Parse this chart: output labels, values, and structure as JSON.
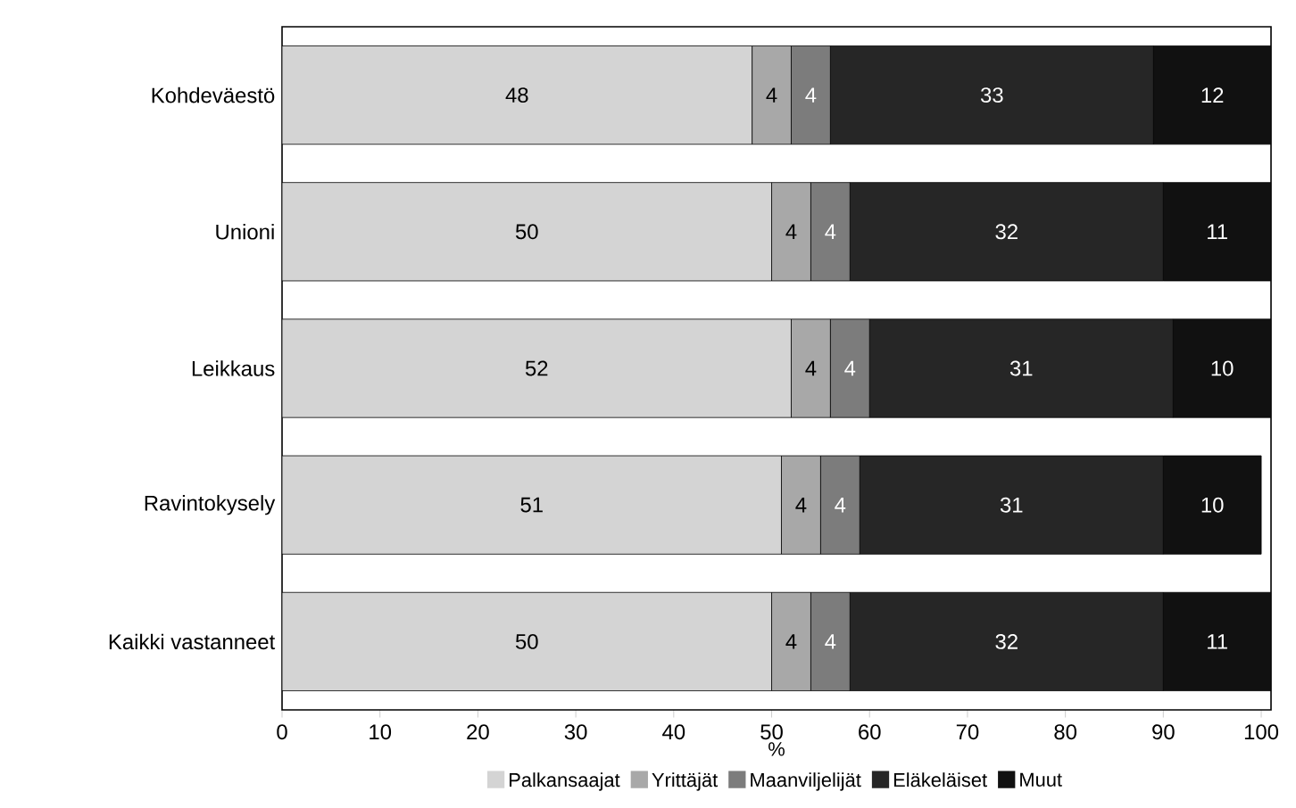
{
  "chart_data": {
    "type": "bar",
    "orientation": "horizontal",
    "stacked": true,
    "data_labels": true,
    "legend": "bottom",
    "xlabel": "%",
    "categories": [
      "Kohdeväestö",
      "Unioni",
      "Leikkaus",
      "Ravintokysely",
      "Kaikki vastanneet"
    ],
    "xlim": [
      0,
      101
    ],
    "xticks": [
      0,
      10,
      20,
      30,
      40,
      50,
      60,
      70,
      80,
      90,
      100
    ],
    "series": [
      {
        "name": "Palkansaajat",
        "color": "#d4d4d4",
        "values": [
          48,
          50,
          52,
          51,
          50
        ]
      },
      {
        "name": "Yrittäjät",
        "color": "#a8a8a8",
        "values": [
          4,
          4,
          4,
          4,
          4
        ]
      },
      {
        "name": "Maanviljelijät",
        "color": "#7c7c7c",
        "values": [
          4,
          4,
          4,
          4,
          4
        ]
      },
      {
        "name": "Eläkeläiset",
        "color": "#262626",
        "values": [
          33,
          32,
          31,
          31,
          32
        ]
      },
      {
        "name": "Muut",
        "color": "#111111",
        "values": [
          12,
          11,
          10,
          10,
          11
        ]
      }
    ]
  }
}
